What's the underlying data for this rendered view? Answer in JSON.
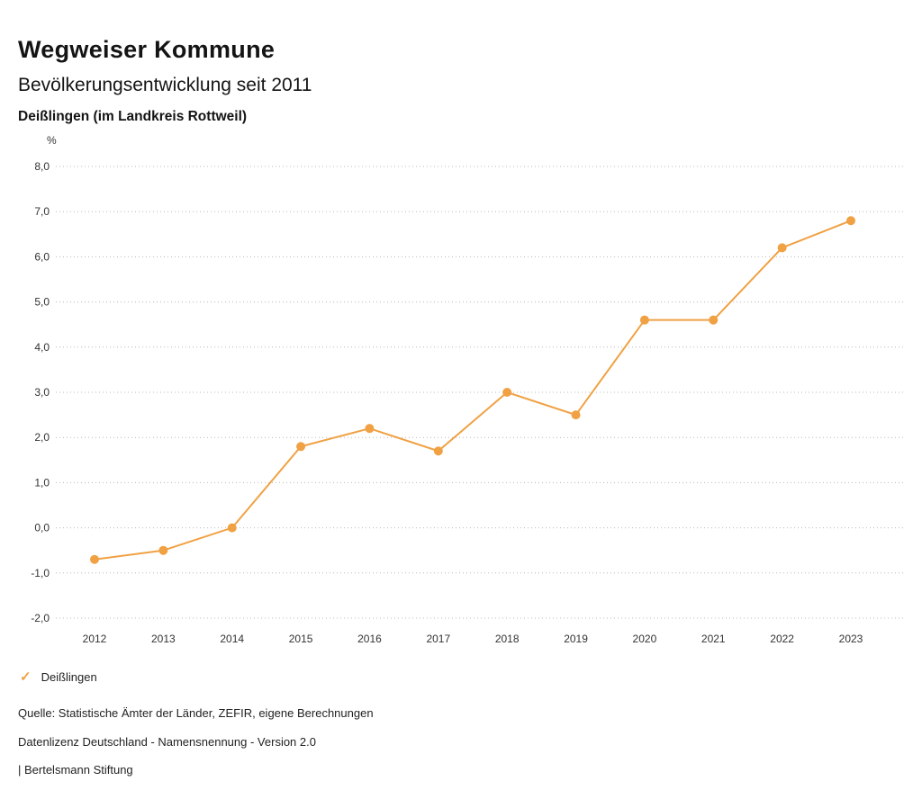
{
  "header": {
    "title": "Wegweiser Kommune",
    "subtitle": "Bevölkerungsentwicklung seit 2011",
    "region": "Deißlingen (im Landkreis Rottweil)"
  },
  "chart_data": {
    "type": "line",
    "unit_label": "%",
    "categories": [
      "2012",
      "2013",
      "2014",
      "2015",
      "2016",
      "2017",
      "2018",
      "2019",
      "2020",
      "2021",
      "2022",
      "2023"
    ],
    "series": [
      {
        "name": "Deißlingen",
        "values": [
          -0.7,
          -0.5,
          0.0,
          1.8,
          2.2,
          1.7,
          3.0,
          2.5,
          4.6,
          4.6,
          6.2,
          6.8
        ],
        "color": "#f0a143"
      }
    ],
    "ylim": [
      -2.0,
      8.0
    ],
    "ytick_step": 1.0,
    "ytick_labels": [
      "8,0",
      "7,0",
      "6,0",
      "5,0",
      "4,0",
      "3,0",
      "2,0",
      "1,0",
      "0,0",
      "-1,0",
      "-2,0"
    ],
    "grid": "horizontal-dotted",
    "legend_position": "bottom-left",
    "marker": "circle"
  },
  "legend": {
    "items": [
      {
        "label": "Deißlingen",
        "color": "#f0a143",
        "marker": "check"
      }
    ],
    "check_glyph": "✓"
  },
  "footer": {
    "source": "Quelle: Statistische Ämter der Länder, ZEFIR, eigene Berechnungen",
    "license": "Datenlizenz Deutschland - Namensnennung - Version 2.0",
    "attribution": "| Bertelsmann Stiftung"
  }
}
